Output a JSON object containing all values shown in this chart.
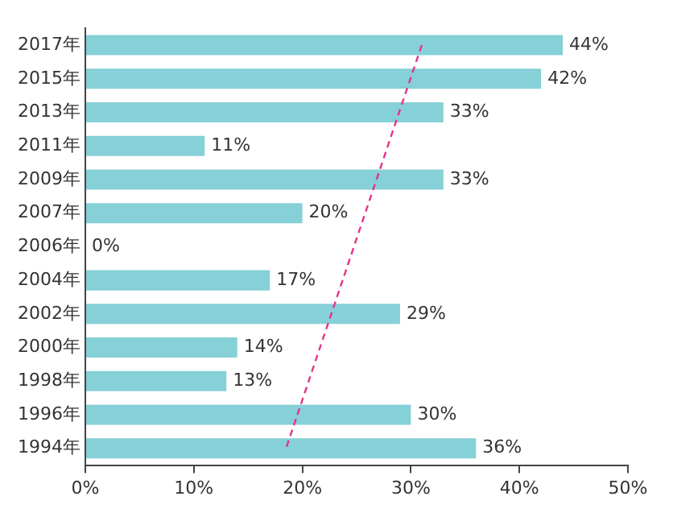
{
  "chart_data": {
    "type": "bar",
    "orientation": "horizontal",
    "categories": [
      "2017年",
      "2015年",
      "2013年",
      "2011年",
      "2009年",
      "2007年",
      "2006年",
      "2004年",
      "2002年",
      "2000年",
      "1998年",
      "1996年",
      "1994年"
    ],
    "series": [
      {
        "color": "#86d0d8",
        "values": [
          44,
          42,
          33,
          11,
          33,
          20,
          0,
          17,
          29,
          14,
          13,
          30,
          36
        ],
        "value_labels": [
          "44%",
          "42%",
          "33%",
          "11%",
          "33%",
          "20%",
          "0%",
          "17%",
          "29%",
          "14%",
          "13%",
          "30%",
          "36%"
        ]
      },
      {
        "type": "line",
        "color": "#e5338c",
        "line_style": "dashed",
        "marker": "none",
        "values": [
          31,
          null,
          null,
          null,
          null,
          null,
          null,
          null,
          null,
          null,
          null,
          null,
          18.5
        ]
      }
    ],
    "xlim": [
      0,
      50
    ],
    "xticks": [
      {
        "value": 0,
        "label": "0%"
      },
      {
        "value": 10,
        "label": "10%"
      },
      {
        "value": 20,
        "label": "20%"
      },
      {
        "value": 30,
        "label": "30%"
      },
      {
        "value": 40,
        "label": "40%"
      },
      {
        "value": 50,
        "label": "50%"
      }
    ]
  }
}
